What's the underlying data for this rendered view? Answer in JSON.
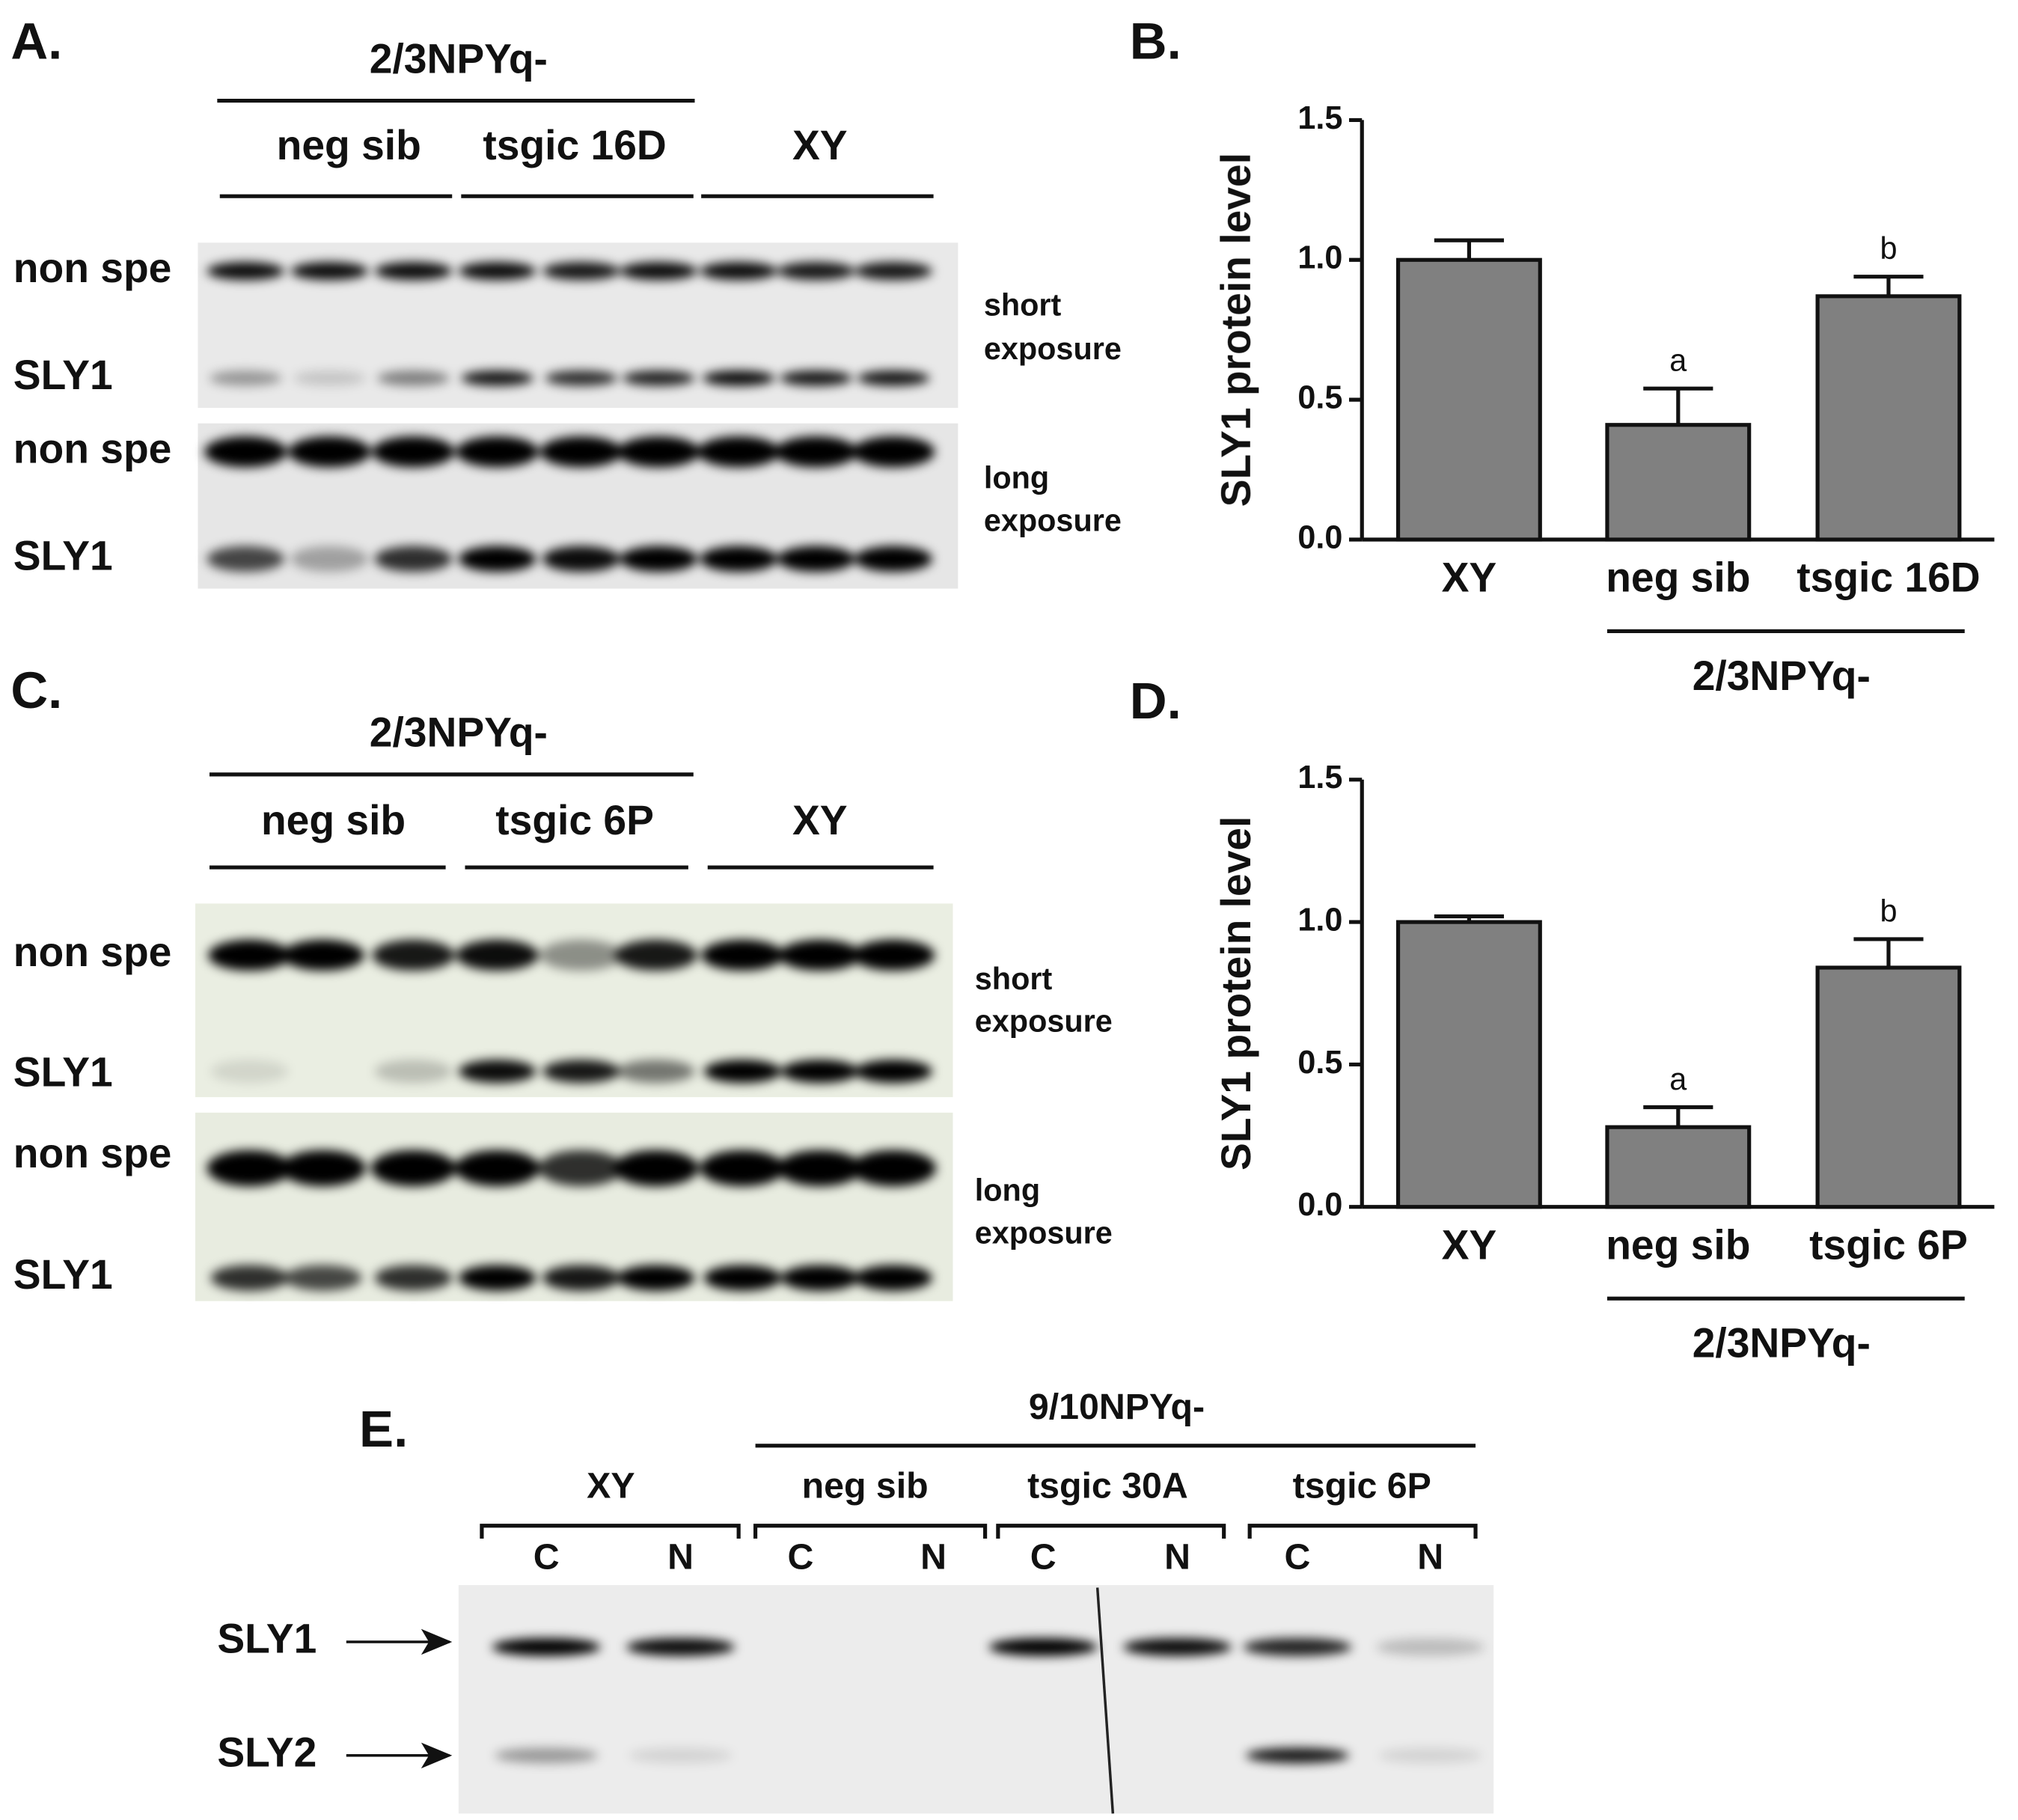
{
  "chart_data": [
    {
      "type": "bar",
      "panel_label": "B.",
      "ylabel": "SLY1 protein level",
      "categories": [
        "XY",
        "neg sib",
        "tsgic 16D"
      ],
      "values": [
        1.0,
        0.41,
        0.87
      ],
      "errors": [
        0.07,
        0.13,
        0.07
      ],
      "significance": [
        null,
        "a",
        "b"
      ],
      "group_label": "2/3NPYq-",
      "color": "#808080",
      "ylim": [
        0,
        1.5
      ],
      "yticks": [
        {
          "value": 0,
          "label": "0.0"
        },
        {
          "value": 0.5,
          "label": "0.5"
        },
        {
          "value": 1,
          "label": "1.0"
        },
        {
          "value": 1.5,
          "label": "1.5"
        }
      ]
    },
    {
      "type": "bar",
      "panel_label": "D.",
      "ylabel": "SLY1 protein level",
      "categories": [
        "XY",
        "neg sib",
        "tsgic 6P"
      ],
      "values": [
        1.0,
        0.28,
        0.84
      ],
      "errors": [
        0.02,
        0.07,
        0.1
      ],
      "significance": [
        null,
        "a",
        "b"
      ],
      "group_label": "2/3NPYq-",
      "color": "#808080",
      "ylim": [
        0,
        1.5
      ],
      "yticks": [
        {
          "value": 0,
          "label": "0.0"
        },
        {
          "value": 0.5,
          "label": "0.5"
        },
        {
          "value": 1,
          "label": "1.0"
        },
        {
          "value": 1.5,
          "label": "1.5"
        }
      ]
    }
  ],
  "panels": [
    {
      "label": "A.",
      "group": "2/3NPYq-",
      "lane_groups": [
        "neg sib",
        "tsgic 16D",
        "XY"
      ],
      "rows": [
        "non spe",
        "SLY1",
        "non spe",
        "SLY1"
      ],
      "exposures": [
        [
          "short",
          "exposure"
        ],
        [
          "long",
          "exposure"
        ]
      ]
    },
    {
      "label": "C.",
      "group": "2/3NPYq-",
      "lane_groups": [
        "neg sib",
        "tsgic 6P",
        "XY"
      ],
      "rows": [
        "non spe",
        "SLY1",
        "non spe",
        "SLY1"
      ],
      "exposures": [
        [
          "short",
          "exposure"
        ],
        [
          "long",
          "exposure"
        ]
      ]
    },
    {
      "label": "E.",
      "group": "9/10NPYq-",
      "lane_groups": [
        "XY",
        "neg sib",
        "tsgic 30A",
        "tsgic 6P"
      ],
      "lanes": [
        "C",
        "N",
        "C",
        "N",
        "C",
        "N",
        "C",
        "N"
      ],
      "rows": [
        "SLY1",
        "SLY2"
      ]
    }
  ]
}
